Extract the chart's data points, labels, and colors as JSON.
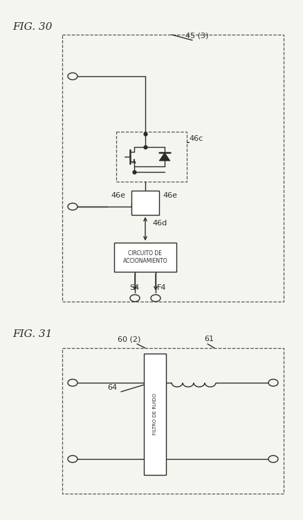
{
  "fig_title_30": "FIG. 30",
  "fig_title_31": "FIG. 31",
  "bg_color": "#f5f5f0",
  "line_color": "#2a2a2a",
  "dash_box_color": "#555555",
  "label_45": "45 (3)",
  "label_46c": "46c",
  "label_46e_left": "46e",
  "label_46e_right": "46e",
  "label_46d": "46d",
  "label_s4": "S4",
  "label_f4": "F4",
  "label_circuito": "CIRCUITO DE\nACCIONAMIENTO",
  "label_60": "60 (2)",
  "label_61": "61",
  "label_64": "64",
  "label_filtro": "FILTRO DE RUIDO"
}
